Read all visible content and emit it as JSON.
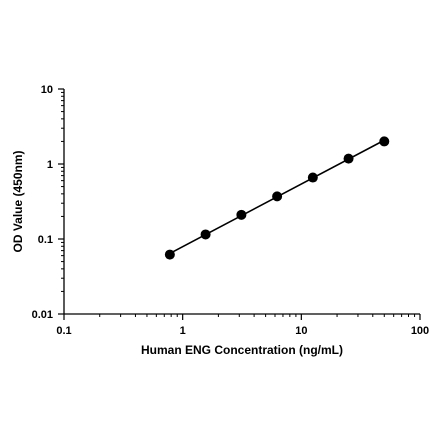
{
  "chart_data": {
    "type": "scatter",
    "title": "",
    "xlabel": "Human ENG Concentration (ng/mL)",
    "ylabel": "OD Value (450nm)",
    "xscale": "log",
    "yscale": "log",
    "xlim": [
      0.1,
      100
    ],
    "ylim": [
      0.01,
      10
    ],
    "x_ticks": [
      "0.1",
      "1",
      "10",
      "100"
    ],
    "y_ticks": [
      "0.01",
      "0.1",
      "1",
      "10"
    ],
    "grid": false,
    "legend": "none",
    "fit_line": true,
    "series": [
      {
        "x": [
          0.78,
          1.56,
          3.125,
          6.25,
          12.5,
          25,
          50
        ],
        "y": [
          0.062,
          0.115,
          0.21,
          0.37,
          0.66,
          1.18,
          2.0
        ]
      }
    ],
    "colors": {
      "points": "#000000",
      "line": "#000000",
      "axis": "#000000"
    }
  }
}
